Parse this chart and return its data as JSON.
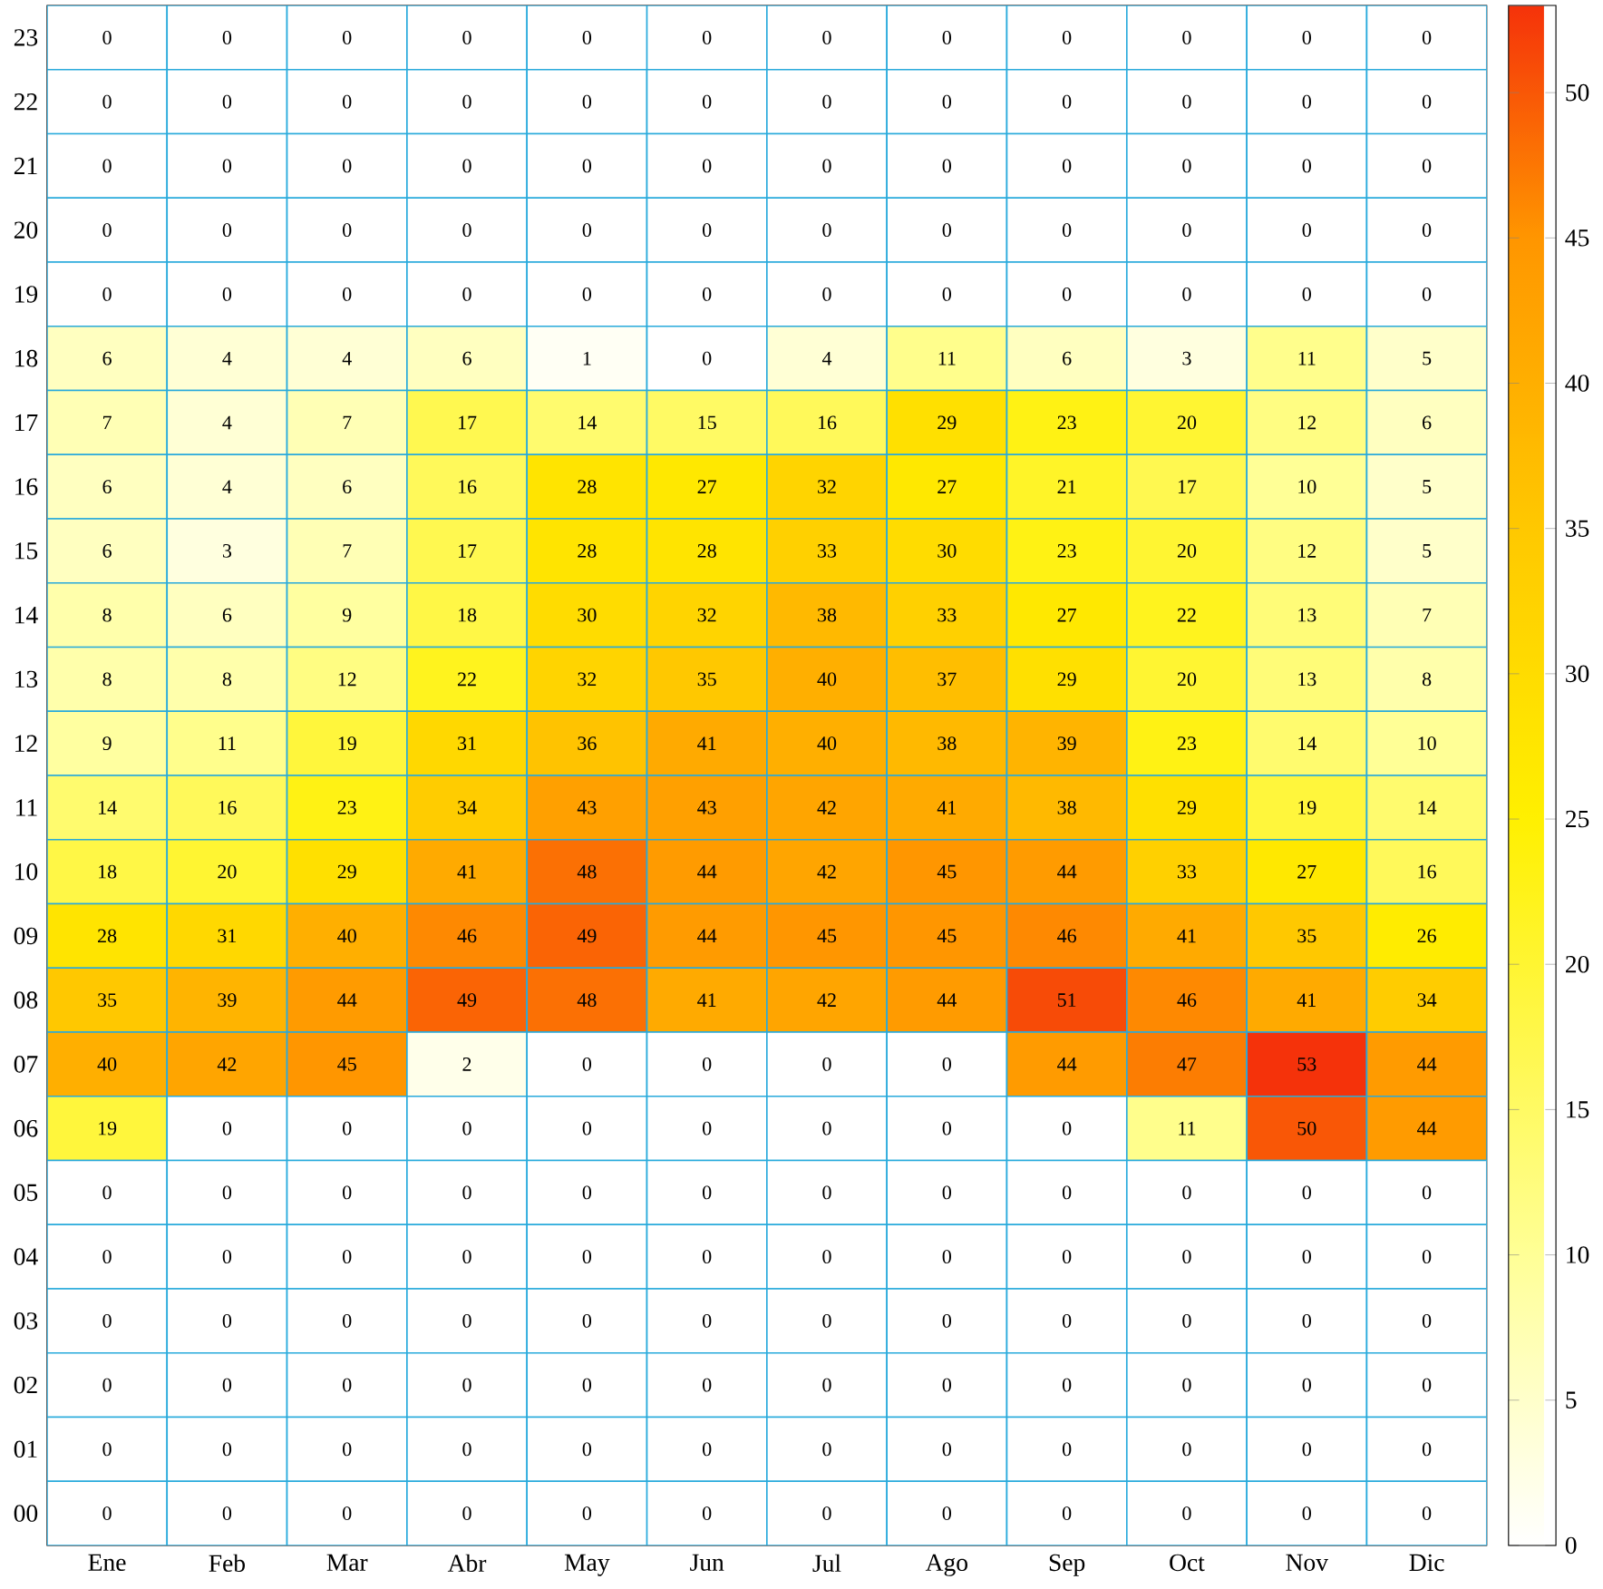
{
  "chart_data": {
    "type": "heatmap",
    "categories": [
      "Ene",
      "Feb",
      "Mar",
      "Abr",
      "May",
      "Jun",
      "Jul",
      "Ago",
      "Sep",
      "Oct",
      "Nov",
      "Dic"
    ],
    "y_categories": [
      "23",
      "22",
      "21",
      "20",
      "19",
      "18",
      "17",
      "16",
      "15",
      "14",
      "13",
      "12",
      "11",
      "10",
      "09",
      "08",
      "07",
      "06",
      "05",
      "04",
      "03",
      "02",
      "01",
      "00"
    ],
    "cells": [
      [
        0,
        0,
        0,
        0,
        0,
        0,
        0,
        0,
        0,
        0,
        0,
        0
      ],
      [
        0,
        0,
        0,
        0,
        0,
        0,
        0,
        0,
        0,
        0,
        0,
        0
      ],
      [
        0,
        0,
        0,
        0,
        0,
        0,
        0,
        0,
        0,
        0,
        0,
        0
      ],
      [
        0,
        0,
        0,
        0,
        0,
        0,
        0,
        0,
        0,
        0,
        0,
        0
      ],
      [
        0,
        0,
        0,
        0,
        0,
        0,
        0,
        0,
        0,
        0,
        0,
        0
      ],
      [
        6,
        4,
        4,
        6,
        1,
        0,
        4,
        11,
        6,
        3,
        11,
        5
      ],
      [
        7,
        4,
        7,
        17,
        14,
        15,
        16,
        29,
        23,
        20,
        12,
        6
      ],
      [
        6,
        4,
        6,
        16,
        28,
        27,
        32,
        27,
        21,
        17,
        10,
        5
      ],
      [
        6,
        3,
        7,
        17,
        28,
        28,
        33,
        30,
        23,
        20,
        12,
        5
      ],
      [
        8,
        6,
        9,
        18,
        30,
        32,
        38,
        33,
        27,
        22,
        13,
        7
      ],
      [
        8,
        8,
        12,
        22,
        32,
        35,
        40,
        37,
        29,
        20,
        13,
        8
      ],
      [
        9,
        11,
        19,
        31,
        36,
        41,
        40,
        38,
        39,
        23,
        14,
        10
      ],
      [
        14,
        16,
        23,
        34,
        43,
        43,
        42,
        41,
        38,
        29,
        19,
        14
      ],
      [
        18,
        20,
        29,
        41,
        48,
        44,
        42,
        45,
        44,
        33,
        27,
        16
      ],
      [
        28,
        31,
        40,
        46,
        49,
        44,
        45,
        45,
        46,
        41,
        35,
        26
      ],
      [
        35,
        39,
        44,
        49,
        48,
        41,
        42,
        44,
        51,
        46,
        41,
        34
      ],
      [
        40,
        42,
        45,
        2,
        0,
        0,
        0,
        0,
        44,
        47,
        53,
        44
      ],
      [
        19,
        0,
        0,
        0,
        0,
        0,
        0,
        0,
        0,
        11,
        50,
        44
      ],
      [
        0,
        0,
        0,
        0,
        0,
        0,
        0,
        0,
        0,
        0,
        0,
        0
      ],
      [
        0,
        0,
        0,
        0,
        0,
        0,
        0,
        0,
        0,
        0,
        0,
        0
      ],
      [
        0,
        0,
        0,
        0,
        0,
        0,
        0,
        0,
        0,
        0,
        0,
        0
      ],
      [
        0,
        0,
        0,
        0,
        0,
        0,
        0,
        0,
        0,
        0,
        0,
        0
      ],
      [
        0,
        0,
        0,
        0,
        0,
        0,
        0,
        0,
        0,
        0,
        0,
        0
      ],
      [
        0,
        0,
        0,
        0,
        0,
        0,
        0,
        0,
        0,
        0,
        0,
        0
      ]
    ],
    "clim": [
      0,
      53
    ],
    "cticks": [
      0,
      5,
      10,
      15,
      20,
      25,
      30,
      35,
      40,
      45,
      50
    ],
    "data_labels": true
  }
}
